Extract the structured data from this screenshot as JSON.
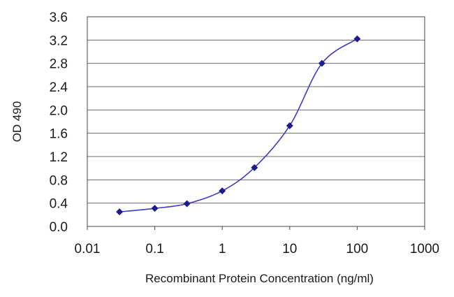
{
  "chart_data": {
    "type": "line",
    "title": "",
    "xlabel": "Recombinant Protein Concentration (ng/ml)",
    "ylabel": "OD 490",
    "x_scale": "log",
    "xlim": [
      0.01,
      1000
    ],
    "ylim": [
      0.0,
      3.6
    ],
    "x_ticks": [
      "0.01",
      "0.1",
      "1",
      "10",
      "100",
      "1000"
    ],
    "y_ticks": [
      "0.0",
      "0.4",
      "0.8",
      "1.2",
      "1.6",
      "2.0",
      "2.4",
      "2.8",
      "3.2",
      "3.6"
    ],
    "grid": "horizontal",
    "legend": "none",
    "colors": {
      "series": "#3b3bc4",
      "marker": "#1c1c8c",
      "grid": "#6e6e6e",
      "axis": "#444444"
    },
    "series": [
      {
        "x": [
          0.03,
          0.1,
          0.3,
          1,
          3,
          10,
          30,
          100
        ],
        "y": [
          0.25,
          0.31,
          0.39,
          0.61,
          1.01,
          1.73,
          2.8,
          3.22
        ]
      }
    ]
  }
}
